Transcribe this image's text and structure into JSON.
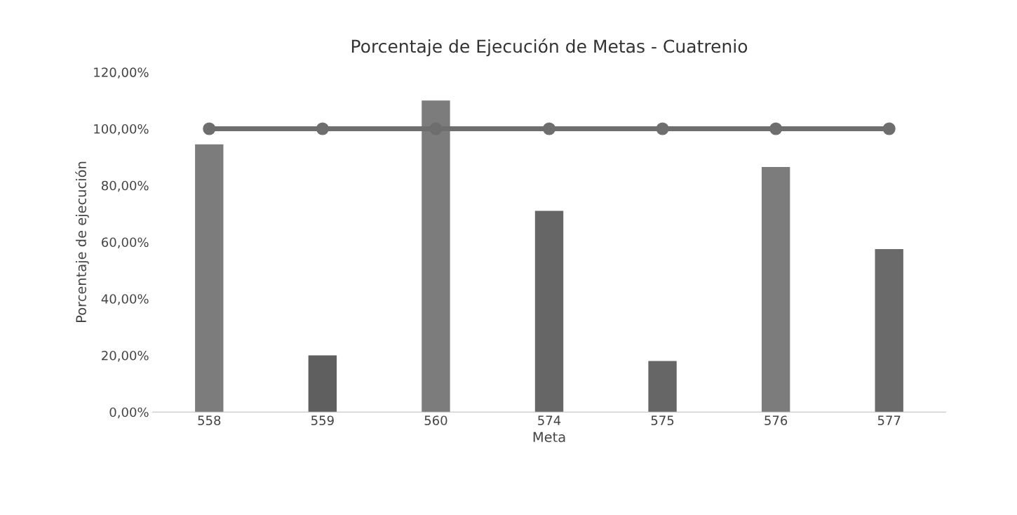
{
  "chart_data": {
    "type": "bar",
    "title": "Porcentaje de Ejecución de Metas - Cuatrenio",
    "xlabel": "Meta",
    "ylabel": "Porcentaje de ejecución",
    "categories": [
      "558",
      "559",
      "560",
      "574",
      "575",
      "576",
      "577"
    ],
    "series": [
      {
        "colors": [
          "#7c7c7c",
          "#5f5f5f",
          "#7c7c7c",
          "#666666",
          "#666666",
          "#7c7c7c",
          "#6a6a6a"
        ],
        "values": [
          94.5,
          20,
          110,
          71,
          18,
          86.5,
          57.5
        ]
      },
      {
        "type": "line",
        "color": "#6e6e6e",
        "marker": "circle",
        "values": [
          100,
          100,
          100,
          100,
          100,
          100,
          100
        ]
      }
    ],
    "ylim": [
      0,
      120
    ],
    "yticks": [
      {
        "value": 0,
        "label": "0,00%"
      },
      {
        "value": 20,
        "label": "20,00%"
      },
      {
        "value": 40,
        "label": "40,00%"
      },
      {
        "value": 60,
        "label": "60,00%"
      },
      {
        "value": 80,
        "label": "80,00%"
      },
      {
        "value": 100,
        "label": "100,00%"
      },
      {
        "value": 120,
        "label": "120,00%"
      }
    ],
    "grid": false,
    "legend": false
  }
}
